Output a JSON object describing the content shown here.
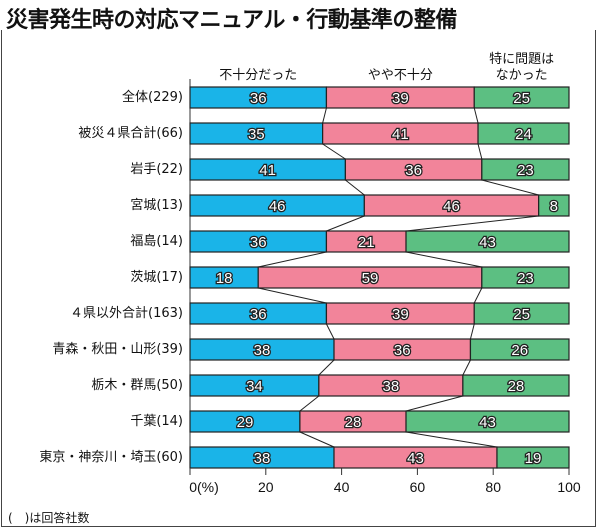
{
  "chart_data": {
    "type": "bar",
    "subtype": "stacked-horizontal-100",
    "title": "災害発生時の対応マニュアル・行動基準の整備",
    "categories": [
      "全体(229)",
      "被災４県合計(66)",
      "岩手(22)",
      "宮城(13)",
      "福島(14)",
      "茨城(17)",
      "４県以外合計(163)",
      "青森・秋田・山形(39)",
      "栃木・群馬(50)",
      "千葉(14)",
      "東京・神奈川・埼玉(60)"
    ],
    "series": [
      {
        "name": "不十分だった",
        "color": "#1ab4e8",
        "values": [
          36,
          35,
          41,
          46,
          36,
          18,
          36,
          38,
          34,
          29,
          38
        ]
      },
      {
        "name": "やや不十分",
        "color": "#f2849a",
        "values": [
          39,
          41,
          36,
          46,
          21,
          59,
          39,
          36,
          38,
          28,
          43
        ]
      },
      {
        "name": "特に問題はなかった",
        "color": "#5cbf82",
        "values": [
          25,
          24,
          23,
          8,
          43,
          23,
          25,
          26,
          28,
          43,
          19
        ]
      }
    ],
    "series_header_lines": [
      [
        "不十分だった"
      ],
      [
        "やや不十分"
      ],
      [
        "特に問題は",
        "なかった"
      ]
    ],
    "xlabel": "",
    "ylabel": "",
    "xlim": [
      0,
      100
    ],
    "xticks": [
      0,
      20,
      40,
      60,
      80,
      100
    ],
    "xtick_labels": [
      "0(%)",
      "20",
      "40",
      "60",
      "80",
      "100"
    ],
    "grid": false,
    "legend": "top (column headers)",
    "connector_lines": true
  },
  "footnote": "(　)は回答社数"
}
